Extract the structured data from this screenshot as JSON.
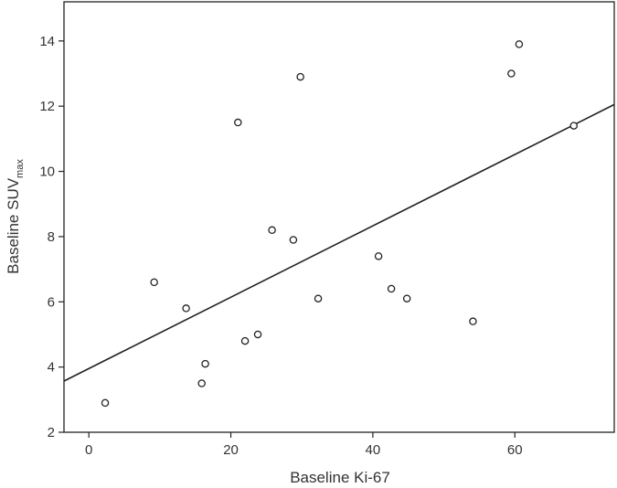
{
  "chart_data": {
    "type": "scatter",
    "xlabel": "Baseline Ki-67",
    "ylabel_main": "Baseline SUV",
    "ylabel_sub": "max",
    "xlim": [
      -3.5,
      74
    ],
    "ylim": [
      2,
      15.2
    ],
    "xticks": [
      0,
      20,
      40,
      60
    ],
    "yticks": [
      2,
      4,
      6,
      8,
      10,
      12,
      14
    ],
    "grid": false,
    "legend": "none",
    "points": [
      {
        "x": 2.3,
        "y": 2.9
      },
      {
        "x": 9.2,
        "y": 6.6
      },
      {
        "x": 13.7,
        "y": 5.8
      },
      {
        "x": 15.9,
        "y": 3.5
      },
      {
        "x": 16.4,
        "y": 4.1
      },
      {
        "x": 21.0,
        "y": 11.5
      },
      {
        "x": 22.0,
        "y": 4.8
      },
      {
        "x": 23.8,
        "y": 5.0
      },
      {
        "x": 25.8,
        "y": 8.2
      },
      {
        "x": 28.8,
        "y": 7.9
      },
      {
        "x": 29.8,
        "y": 12.9
      },
      {
        "x": 32.3,
        "y": 6.1
      },
      {
        "x": 40.8,
        "y": 7.4
      },
      {
        "x": 42.6,
        "y": 6.4
      },
      {
        "x": 44.8,
        "y": 6.1
      },
      {
        "x": 54.1,
        "y": 5.4
      },
      {
        "x": 59.5,
        "y": 13.0
      },
      {
        "x": 60.6,
        "y": 13.9
      },
      {
        "x": 68.3,
        "y": 11.4
      }
    ],
    "fit_line": {
      "x": [
        -3.5,
        74
      ],
      "y": [
        3.57,
        12.05
      ]
    },
    "colors": {
      "axis": "#222222",
      "marker": "#222222",
      "line": "#222222"
    }
  }
}
